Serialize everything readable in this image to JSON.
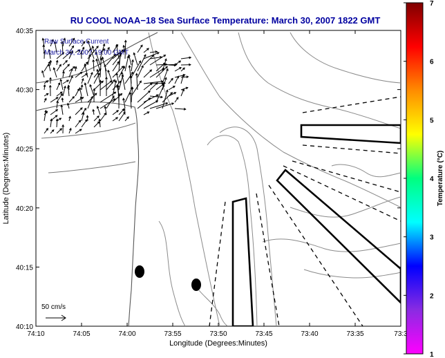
{
  "title": "RU COOL  NOAA−18  Sea Surface Temperature:  March 30, 2007 1822 GMT",
  "annotation": {
    "line1": "Raw Surface Current",
    "line2": "March 30, 2007 19:00 GMT"
  },
  "scale_label": "50 cm/s",
  "axes": {
    "xlabel": "Longitude (Degrees:Minutes)",
    "ylabel": "Latitude (Degrees:Minutes)",
    "xticks": [
      "74:10",
      "74:05",
      "74:00",
      "73:55",
      "73:50",
      "73:45",
      "73:40",
      "73:35",
      "73:3"
    ],
    "yticks": [
      "40:35",
      "40:30",
      "40:25",
      "40:20",
      "40:15",
      "40:10"
    ]
  },
  "colorbar": {
    "label": "Temperature (°C)",
    "ticks": [
      "7",
      "6",
      "5",
      "4",
      "3",
      "2",
      "1"
    ],
    "colors": [
      "#7f0000",
      "#ff0000",
      "#ff8c00",
      "#ffff00",
      "#00ff7f",
      "#00ffff",
      "#0000ff",
      "#8a2be2",
      "#ff00ff"
    ]
  },
  "map_layers": [
    "coastline",
    "bathymetry-contours",
    "surface-current-vectors",
    "shipping-lanes",
    "disposal-sites"
  ]
}
